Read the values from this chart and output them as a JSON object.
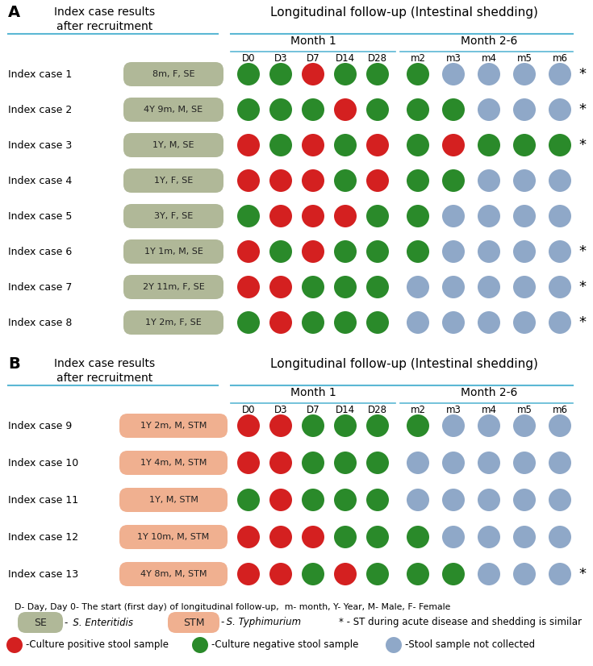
{
  "col_labels": [
    "D0",
    "D3",
    "D7",
    "D14",
    "D28",
    "m2",
    "m3",
    "m4",
    "m5",
    "m6"
  ],
  "cases_A": [
    {
      "label": "Index case 1",
      "badge": "8m, F, SE",
      "colors": [
        "G",
        "G",
        "R",
        "G",
        "G",
        "G",
        "B",
        "B",
        "B",
        "B"
      ],
      "star": true
    },
    {
      "label": "Index case 2",
      "badge": "4Y 9m, M, SE",
      "colors": [
        "G",
        "G",
        "G",
        "R",
        "G",
        "G",
        "G",
        "B",
        "B",
        "B"
      ],
      "star": true
    },
    {
      "label": "Index case 3",
      "badge": "1Y, M, SE",
      "colors": [
        "R",
        "G",
        "R",
        "G",
        "R",
        "G",
        "R",
        "G",
        "G",
        "G"
      ],
      "star": true
    },
    {
      "label": "Index case 4",
      "badge": "1Y, F, SE",
      "colors": [
        "R",
        "R",
        "R",
        "G",
        "R",
        "G",
        "G",
        "B",
        "B",
        "B"
      ],
      "star": false
    },
    {
      "label": "Index case 5",
      "badge": "3Y, F, SE",
      "colors": [
        "G",
        "R",
        "R",
        "R",
        "G",
        "G",
        "B",
        "B",
        "B",
        "B"
      ],
      "star": false
    },
    {
      "label": "Index case 6",
      "badge": "1Y 1m, M, SE",
      "colors": [
        "R",
        "G",
        "R",
        "G",
        "G",
        "G",
        "B",
        "B",
        "B",
        "B"
      ],
      "star": true
    },
    {
      "label": "Index case 7",
      "badge": "2Y 11m, F, SE",
      "colors": [
        "R",
        "R",
        "G",
        "G",
        "G",
        "B",
        "B",
        "B",
        "B",
        "B"
      ],
      "star": true
    },
    {
      "label": "Index case 8",
      "badge": "1Y 2m, F, SE",
      "colors": [
        "G",
        "R",
        "G",
        "G",
        "G",
        "B",
        "B",
        "B",
        "B",
        "B"
      ],
      "star": true
    }
  ],
  "cases_B": [
    {
      "label": "Index case 9",
      "badge": "1Y 2m, M, STM",
      "colors": [
        "R",
        "R",
        "G",
        "G",
        "G",
        "G",
        "B",
        "B",
        "B",
        "B"
      ],
      "star": false
    },
    {
      "label": "Index case 10",
      "badge": "1Y 4m, M, STM",
      "colors": [
        "R",
        "R",
        "G",
        "G",
        "G",
        "B",
        "B",
        "B",
        "B",
        "B"
      ],
      "star": false
    },
    {
      "label": "Index case 11",
      "badge": "1Y, M, STM",
      "colors": [
        "G",
        "R",
        "G",
        "G",
        "G",
        "B",
        "B",
        "B",
        "B",
        "B"
      ],
      "star": false
    },
    {
      "label": "Index case 12",
      "badge": "1Y 10m, M, STM",
      "colors": [
        "R",
        "R",
        "R",
        "G",
        "G",
        "G",
        "B",
        "B",
        "B",
        "B"
      ],
      "star": false
    },
    {
      "label": "Index case 13",
      "badge": "4Y 8m, M, STM",
      "colors": [
        "R",
        "R",
        "G",
        "R",
        "G",
        "G",
        "G",
        "B",
        "B",
        "B"
      ],
      "star": true
    }
  ],
  "color_map": {
    "R": "#d42020",
    "G": "#2a8a2a",
    "B": "#8fa8c8"
  },
  "se_badge_color": "#b0b898",
  "stm_badge_color": "#f0b090",
  "lf_title": "Longitudinal follow-up (Intestinal shedding)",
  "left_title": "Index case results\nafter recruitment",
  "month1_label": "Month 1",
  "month26_label": "Month 2-6",
  "legend_note": "D- Day, Day 0- The start (first day) of longitudinal follow-up,  m- month, Y- Year, M- Male, F- Female",
  "legend_star": "* - ST during acute disease and shedding is similar",
  "legend_red": "-Culture positive stool sample",
  "legend_green": "-Culture negative stool sample",
  "legend_blue": "-Stool sample not collected",
  "line_color": "#5bb8d4"
}
